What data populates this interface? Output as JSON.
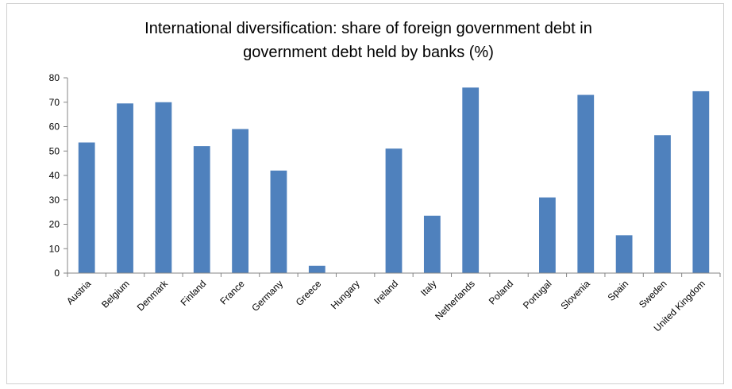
{
  "chart_data": {
    "type": "bar",
    "title_lines": [
      "International diversification: share of  foreign government debt in",
      "government debt held by banks (%)"
    ],
    "categories": [
      "Austria",
      "Belgium",
      "Denmark",
      "Finland",
      "France",
      "Germany",
      "Greece",
      "Hungary",
      "Ireland",
      "Italy",
      "Netherlands",
      "Poland",
      "Portugal",
      "Slovenia",
      "Spain",
      "Sweden",
      "United Kingdom"
    ],
    "values": [
      53.5,
      69.5,
      70,
      52,
      59,
      42,
      3,
      0,
      51,
      23.5,
      76,
      0,
      31,
      73,
      15.5,
      56.5,
      74.5
    ],
    "ylim": [
      0,
      80
    ],
    "yticks": [
      0,
      10,
      20,
      30,
      40,
      50,
      60,
      70,
      80
    ],
    "grid": false,
    "legend": "none",
    "bar_color": "#4f81bd",
    "axis_color": "#868686"
  }
}
